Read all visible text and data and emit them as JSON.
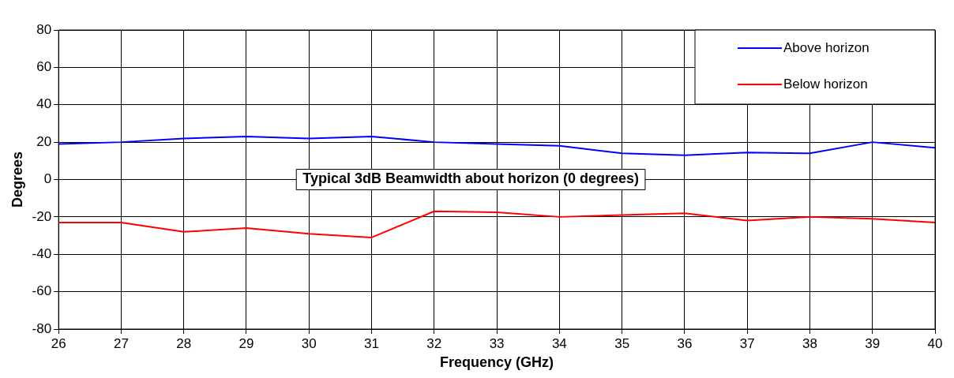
{
  "chart_data": {
    "type": "line",
    "xlabel": "Frequency (GHz)",
    "ylabel": "Degrees",
    "annotations": [
      "Typical 3dB Beamwidth about horizon (0 degrees)"
    ],
    "x": [
      26,
      27,
      28,
      29,
      30,
      31,
      32,
      33,
      34,
      35,
      36,
      37,
      38,
      39,
      40
    ],
    "series": [
      {
        "name": "Above horizon",
        "color": "#0000ff",
        "values": [
          19,
          20,
          22,
          23,
          22,
          23,
          20,
          19,
          18,
          14,
          13,
          14.5,
          14,
          20,
          17
        ]
      },
      {
        "name": "Below horizon",
        "color": "#ff0000",
        "values": [
          -23,
          -23,
          -28,
          -26,
          -29,
          -31,
          -17,
          -17.5,
          -20,
          -19,
          -18,
          -22,
          -20,
          -21,
          -23
        ]
      }
    ],
    "xlim": [
      26,
      40
    ],
    "xticks": [
      26,
      27,
      28,
      29,
      30,
      31,
      32,
      33,
      34,
      35,
      36,
      37,
      38,
      39,
      40
    ],
    "ylim": [
      -80,
      80
    ],
    "yticks": [
      -80,
      -60,
      -40,
      -20,
      0,
      20,
      40,
      60,
      80
    ],
    "grid": true,
    "legend": "top right",
    "marker": "none",
    "line_style": "solid"
  }
}
